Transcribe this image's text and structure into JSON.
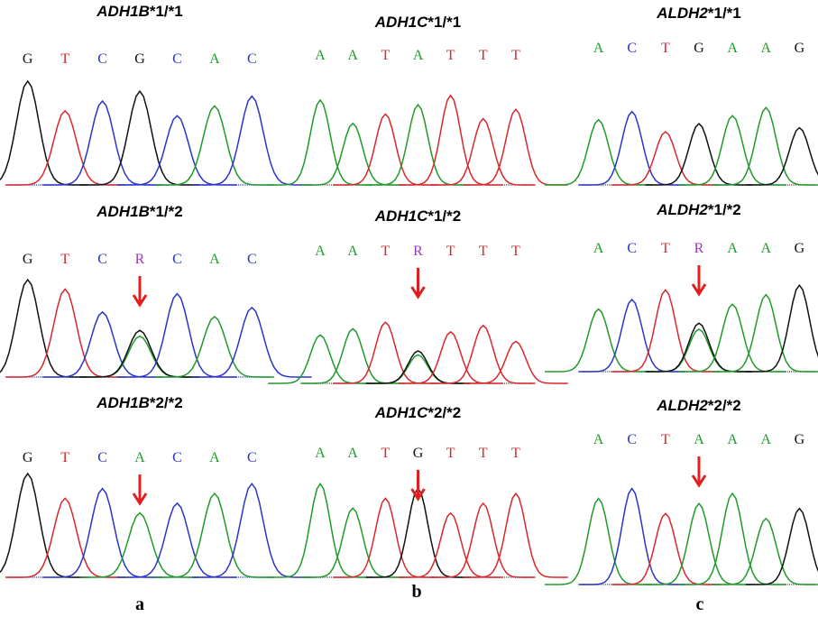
{
  "base_colors": {
    "A": "#1f9a2a",
    "C": "#2a35c8",
    "G": "#111111",
    "T": "#d8272b",
    "R": "#9a39b5"
  },
  "columns": [
    {
      "label": "a",
      "panels": [
        {
          "gene": "ADH1B",
          "allele": "*1/*1",
          "bases": [
            "G",
            "T",
            "C",
            "G",
            "C",
            "A",
            "C"
          ]
        },
        {
          "gene": "ADH1B",
          "allele": "*1/*2",
          "bases": [
            "G",
            "T",
            "C",
            "R",
            "C",
            "A",
            "C"
          ]
        },
        {
          "gene": "ADH1B",
          "allele": "*2/*2",
          "bases": [
            "G",
            "T",
            "C",
            "A",
            "C",
            "A",
            "C"
          ]
        }
      ]
    },
    {
      "label": "b",
      "panels": [
        {
          "gene": "ADH1C",
          "allele": "*1/*1",
          "bases": [
            "A",
            "A",
            "T",
            "A",
            "T",
            "T",
            "T"
          ]
        },
        {
          "gene": "ADH1C",
          "allele": "*1/*2",
          "bases": [
            "A",
            "A",
            "T",
            "R",
            "T",
            "T",
            "T"
          ]
        },
        {
          "gene": "ADH1C",
          "allele": "*2/*2",
          "bases": [
            "A",
            "A",
            "T",
            "G",
            "T",
            "T",
            "T"
          ]
        }
      ]
    },
    {
      "label": "c",
      "panels": [
        {
          "gene": "ALDH2",
          "allele": "*1/*1",
          "bases": [
            "A",
            "C",
            "T",
            "G",
            "A",
            "A",
            "G"
          ]
        },
        {
          "gene": "ALDH2",
          "allele": "*1/*2",
          "bases": [
            "A",
            "C",
            "T",
            "R",
            "A",
            "A",
            "G"
          ]
        },
        {
          "gene": "ALDH2",
          "allele": "*2/*2",
          "bases": [
            "A",
            "C",
            "T",
            "A",
            "A",
            "A",
            "G"
          ]
        }
      ]
    }
  ]
}
